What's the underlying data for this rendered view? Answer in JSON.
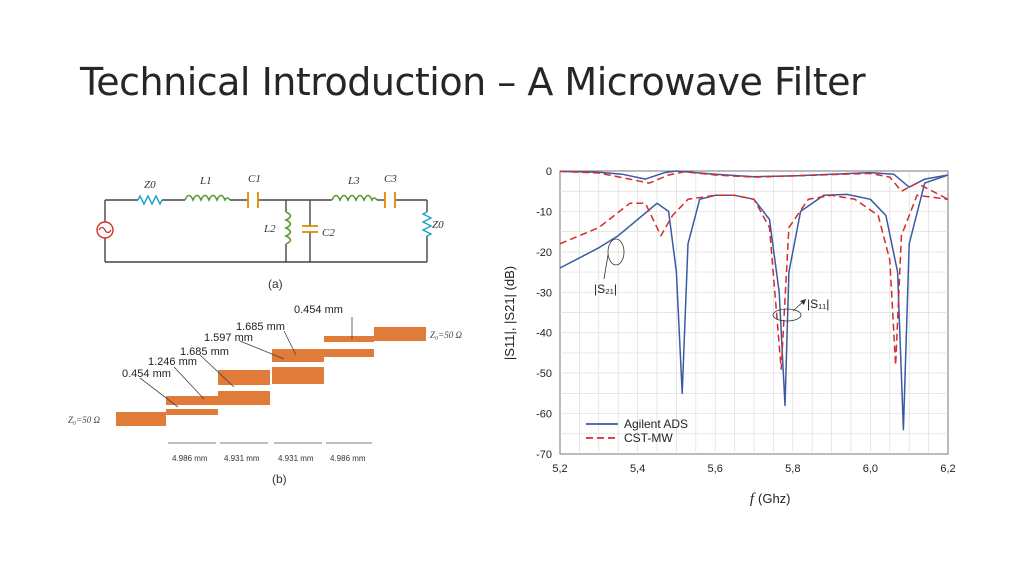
{
  "slide": {
    "title": "Technical Introduction – A Microwave Filter"
  },
  "circuit": {
    "components": [
      "Z0",
      "L1",
      "C1",
      "L2",
      "C2",
      "L3",
      "C3",
      "Z0"
    ],
    "caption": "(a)",
    "colors": {
      "inductor": "#5a9a2a",
      "capacitor": "#e08a00",
      "resistor": "#1aa3c6",
      "source": "#d43030",
      "wire": "#444444"
    }
  },
  "layout_fig": {
    "caption": "(b)",
    "port_left": "Z₀=50 Ω",
    "port_right": "Z₀=50 Ω",
    "width_labels": [
      "0.454 mm",
      "1.246 mm",
      "1.685 mm",
      "1.597 mm",
      "1.685 mm",
      "0.454 mm"
    ],
    "length_labels": [
      "4.986 mm",
      "4.931 mm",
      "4.931 mm",
      "4.986 mm"
    ],
    "strip_color": "#e07b39"
  },
  "plot": {
    "ylabel": "|S11|, |S21| (dB)",
    "xlabel_symbol": "f",
    "xlabel_unit": "(Ghz)",
    "yticks": [
      "0",
      "-10",
      "-20",
      "-30",
      "-40",
      "-50",
      "-60",
      "-70"
    ],
    "xticks": [
      "5,2",
      "5,4",
      "5,6",
      "5,8",
      "6,0",
      "6,2"
    ],
    "s21_label": "|S₂₁|",
    "s11_label": "|S₁₁|",
    "legend": [
      "Agilent ADS",
      "CST-MW"
    ],
    "colors": {
      "ads": "#3b5aa3",
      "cst": "#d62b2b",
      "grid": "#dddddd"
    }
  },
  "chart_data": {
    "type": "line",
    "title": "",
    "xlabel": "f (Ghz)",
    "ylabel": "|S11|, |S21| (dB)",
    "xlim": [
      5.2,
      6.2
    ],
    "ylim": [
      -70,
      0
    ],
    "grid": true,
    "legend_position": "bottom-left",
    "series": [
      {
        "name": "Agilent ADS",
        "curve": "S21",
        "points": [
          [
            5.2,
            -24
          ],
          [
            5.25,
            -21.5
          ],
          [
            5.3,
            -19
          ],
          [
            5.35,
            -16
          ],
          [
            5.4,
            -12
          ],
          [
            5.45,
            -8
          ],
          [
            5.48,
            -10
          ],
          [
            5.5,
            -25
          ],
          [
            5.515,
            -55
          ],
          [
            5.53,
            -18
          ],
          [
            5.56,
            -7
          ],
          [
            5.6,
            -6
          ],
          [
            5.65,
            -6
          ],
          [
            5.7,
            -7
          ],
          [
            5.74,
            -12
          ],
          [
            5.765,
            -30
          ],
          [
            5.78,
            -58
          ],
          [
            5.79,
            -25
          ],
          [
            5.82,
            -10
          ],
          [
            5.88,
            -6
          ],
          [
            5.94,
            -5.8
          ],
          [
            6.0,
            -7
          ],
          [
            6.04,
            -11
          ],
          [
            6.07,
            -25
          ],
          [
            6.085,
            -64
          ],
          [
            6.1,
            -18
          ],
          [
            6.14,
            -3
          ],
          [
            6.2,
            -1
          ]
        ]
      },
      {
        "name": "Agilent ADS",
        "curve": "S11",
        "points": [
          [
            5.2,
            -0.1
          ],
          [
            5.3,
            -0.3
          ],
          [
            5.36,
            -0.8
          ],
          [
            5.42,
            -2
          ],
          [
            5.47,
            -0.4
          ],
          [
            5.5,
            0
          ],
          [
            5.6,
            -0.8
          ],
          [
            5.7,
            -1.4
          ],
          [
            5.8,
            -1.2
          ],
          [
            5.9,
            -0.8
          ],
          [
            6.0,
            -0.4
          ],
          [
            6.06,
            -0.8
          ],
          [
            6.1,
            -4
          ],
          [
            6.14,
            -2
          ],
          [
            6.2,
            -1
          ]
        ]
      },
      {
        "name": "CST-MW",
        "curve": "S21",
        "points": [
          [
            5.2,
            -18
          ],
          [
            5.25,
            -16
          ],
          [
            5.3,
            -14
          ],
          [
            5.34,
            -11
          ],
          [
            5.38,
            -8
          ],
          [
            5.42,
            -8
          ],
          [
            5.46,
            -16
          ],
          [
            5.49,
            -11
          ],
          [
            5.53,
            -7
          ],
          [
            5.6,
            -6
          ],
          [
            5.65,
            -6
          ],
          [
            5.7,
            -7
          ],
          [
            5.74,
            -14
          ],
          [
            5.77,
            -49
          ],
          [
            5.79,
            -14
          ],
          [
            5.84,
            -7
          ],
          [
            5.9,
            -6
          ],
          [
            5.96,
            -7
          ],
          [
            6.02,
            -11
          ],
          [
            6.05,
            -22
          ],
          [
            6.065,
            -48
          ],
          [
            6.08,
            -16
          ],
          [
            6.12,
            -6
          ],
          [
            6.2,
            -7
          ]
        ]
      },
      {
        "name": "CST-MW",
        "curve": "S11",
        "points": [
          [
            5.2,
            -0.1
          ],
          [
            5.3,
            -0.5
          ],
          [
            5.38,
            -2
          ],
          [
            5.43,
            -3
          ],
          [
            5.48,
            -1
          ],
          [
            5.52,
            -0.2
          ],
          [
            5.6,
            -1
          ],
          [
            5.7,
            -1.5
          ],
          [
            5.8,
            -1.2
          ],
          [
            5.9,
            -0.9
          ],
          [
            6.0,
            -0.6
          ],
          [
            6.05,
            -1.5
          ],
          [
            6.08,
            -5
          ],
          [
            6.12,
            -3
          ],
          [
            6.2,
            -7
          ]
        ]
      }
    ]
  }
}
